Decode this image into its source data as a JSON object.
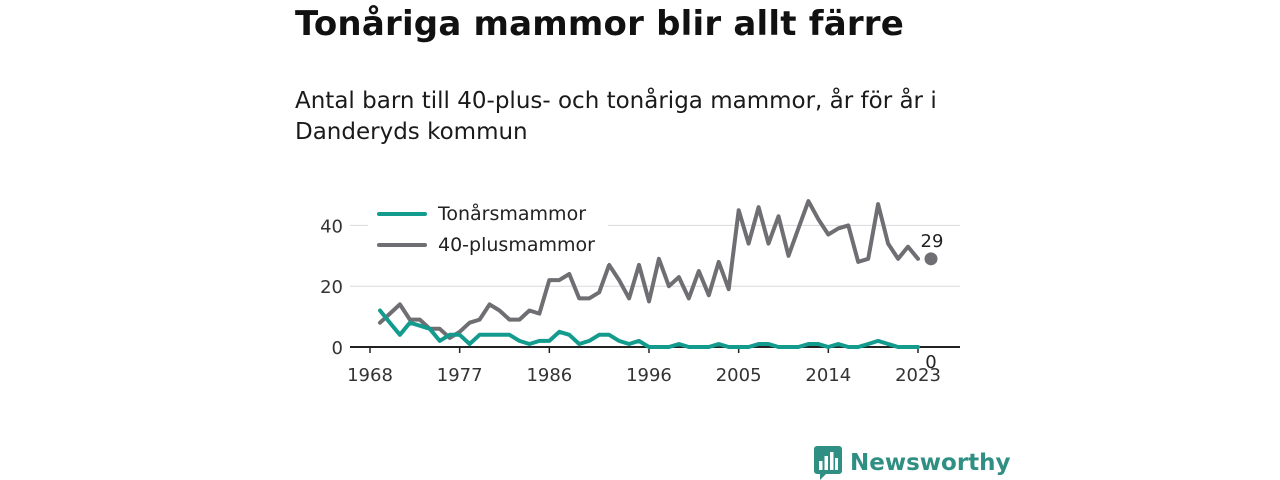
{
  "header": {
    "title": "Tonåriga mammor blir allt färre",
    "subtitle": "Antal barn till 40-plus- och tonåriga mammor, år för år i Danderyds kommun"
  },
  "brand": {
    "name": "Newsworthy",
    "icon": "bar-chart-bubble-icon",
    "color": "#2f8f83"
  },
  "chart_data": {
    "type": "line",
    "title": "",
    "xlabel": "",
    "ylabel": "",
    "xlim": [
      1968,
      2024
    ],
    "ylim": [
      0,
      50
    ],
    "x_ticks": [
      1968,
      1977,
      1986,
      1996,
      2005,
      2014,
      2023
    ],
    "y_ticks": [
      0,
      20,
      40
    ],
    "grid": "horizontal",
    "legend": "top-left",
    "x": [
      1969,
      1970,
      1971,
      1972,
      1973,
      1974,
      1975,
      1976,
      1977,
      1978,
      1979,
      1980,
      1981,
      1982,
      1983,
      1984,
      1985,
      1986,
      1987,
      1988,
      1989,
      1990,
      1991,
      1992,
      1993,
      1994,
      1995,
      1996,
      1997,
      1998,
      1999,
      2000,
      2001,
      2002,
      2003,
      2004,
      2005,
      2006,
      2007,
      2008,
      2009,
      2010,
      2011,
      2012,
      2013,
      2014,
      2015,
      2016,
      2017,
      2018,
      2019,
      2020,
      2021,
      2022,
      2023
    ],
    "series": [
      {
        "name": "Tonårsmammor",
        "color": "#139c8e",
        "values": [
          12,
          8,
          4,
          8,
          7,
          6,
          2,
          4,
          4,
          1,
          4,
          4,
          4,
          4,
          2,
          1,
          2,
          2,
          5,
          4,
          1,
          2,
          4,
          4,
          2,
          1,
          2,
          0,
          0,
          0,
          1,
          0,
          0,
          0,
          1,
          0,
          0,
          0,
          1,
          1,
          0,
          0,
          0,
          1,
          1,
          0,
          1,
          0,
          0,
          1,
          2,
          1,
          0,
          0,
          0
        ],
        "end_label": "0"
      },
      {
        "name": "40-plusmammor",
        "color": "#6e6e73",
        "values": [
          8,
          11,
          14,
          9,
          9,
          6,
          6,
          3,
          5,
          8,
          9,
          14,
          12,
          9,
          9,
          12,
          11,
          22,
          22,
          24,
          16,
          16,
          18,
          27,
          22,
          16,
          27,
          15,
          29,
          20,
          23,
          16,
          25,
          17,
          28,
          19,
          45,
          34,
          46,
          34,
          43,
          30,
          39,
          48,
          42,
          37,
          39,
          40,
          28,
          29,
          47,
          34,
          29,
          33,
          29
        ],
        "end_label": "29"
      }
    ]
  }
}
